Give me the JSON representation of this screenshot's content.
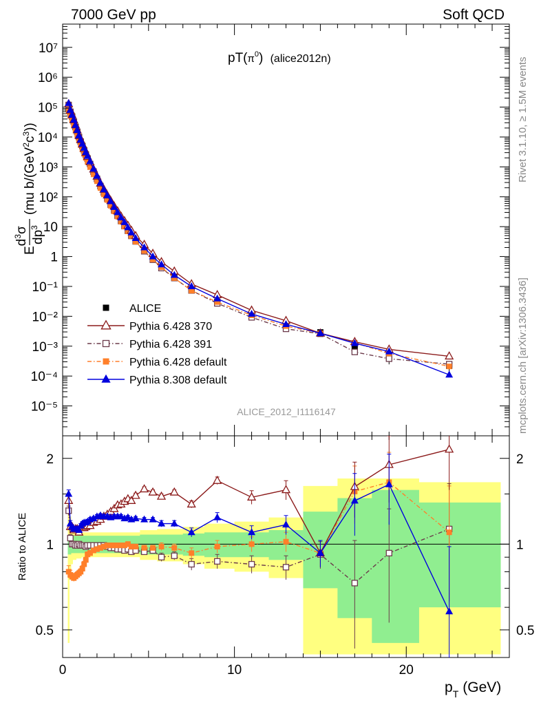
{
  "header": {
    "left": "7000 GeV pp",
    "right": "Soft QCD"
  },
  "side_labels": {
    "rivet": "Rivet 3.1.10, ≥ 1.5M events",
    "mcplots": "mcplots.cern.ch [arXiv:1306.3436]"
  },
  "plot_title": {
    "main": "pT(",
    "sym": "π",
    "sup": "0",
    "close": ")",
    "tag": "(alice2012n)"
  },
  "watermark": "ALICE_2012_I1116147",
  "axes": {
    "ylabel_main": {
      "E": "E",
      "d3": "d",
      "three": "3",
      "sigma": "σ",
      "dp": "dp",
      "p3": "3",
      "units": "(mu b/(GeV",
      "two": "2",
      "c": "c",
      "cube": "3",
      "end": "))"
    },
    "ylabel_ratio": "Ratio to ALICE",
    "xlabel": {
      "p": "p",
      "sub": "T",
      "unit": "(GeV)"
    },
    "x_ticks": [
      "0",
      "10",
      "20"
    ],
    "ratio_ticks": [
      "0.5",
      "1",
      "2"
    ]
  },
  "legend": [
    {
      "label": "ALICE",
      "color": "#000000",
      "marker": "square-filled",
      "line": "none"
    },
    {
      "label": "Pythia 6.428 370",
      "color": "#8b1a1a",
      "marker": "triangle-open",
      "line": "solid"
    },
    {
      "label": "Pythia 6.428 391",
      "color": "#6b3a4a",
      "marker": "square-open",
      "line": "dashdot"
    },
    {
      "label": "Pythia 6.428 default",
      "color": "#ff7f2a",
      "marker": "square-filled",
      "line": "dashdot"
    },
    {
      "label": "Pythia 8.308 default",
      "color": "#0000dd",
      "marker": "triangle-filled",
      "line": "solid"
    }
  ],
  "chart_data": {
    "type": "line",
    "title": "pT(π0) (alice2012n)",
    "xlabel": "pT (GeV)",
    "ylabel": "E d3σ/dp3 (mu b/(GeV2c3))",
    "xlim": [
      0,
      26
    ],
    "ylim": [
      1e-06,
      60000000
    ],
    "yscale": "log",
    "ratio_ylim": [
      0.4,
      2.4
    ],
    "ratio_yscale": "log",
    "x": [
      0.35,
      0.45,
      0.55,
      0.65,
      0.75,
      0.85,
      0.95,
      1.05,
      1.15,
      1.25,
      1.35,
      1.45,
      1.6,
      1.8,
      2.0,
      2.2,
      2.4,
      2.6,
      2.8,
      3.0,
      3.2,
      3.4,
      3.6,
      3.8,
      4.0,
      4.25,
      4.75,
      5.25,
      5.75,
      6.5,
      7.5,
      9.0,
      11.0,
      13.0,
      15.0,
      17.0,
      19.0,
      22.5
    ],
    "series": [
      {
        "name": "ALICE",
        "values": [
          90000,
          68000,
          48000,
          33000,
          22000,
          15000,
          10000,
          7000,
          5000,
          3600,
          2600,
          1900,
          1250,
          700,
          400,
          230,
          140,
          88,
          56,
          36,
          24,
          16,
          11,
          7.5,
          5.2,
          3.3,
          1.6,
          0.82,
          0.45,
          0.21,
          0.086,
          0.031,
          0.0108,
          0.0046,
          0.0029,
          0.00088,
          0.00041,
          0.00022
        ],
        "yerr_rel": [
          0.1,
          0.09,
          0.08,
          0.07,
          0.07,
          0.06,
          0.06,
          0.06,
          0.06,
          0.06,
          0.06,
          0.06,
          0.06,
          0.06,
          0.06,
          0.06,
          0.06,
          0.06,
          0.06,
          0.06,
          0.06,
          0.06,
          0.06,
          0.06,
          0.06,
          0.06,
          0.07,
          0.07,
          0.08,
          0.08,
          0.09,
          0.1,
          0.12,
          0.15,
          0.2,
          0.35,
          0.4,
          0.35
        ],
        "band_inner": [
          0.08,
          0.08,
          0.07,
          0.07,
          0.07,
          0.07,
          0.07,
          0.07,
          0.07,
          0.07,
          0.07,
          0.07,
          0.07,
          0.07,
          0.07,
          0.07,
          0.07,
          0.07,
          0.07,
          0.07,
          0.07,
          0.07,
          0.07,
          0.07,
          0.07,
          0.07,
          0.08,
          0.08,
          0.08,
          0.08,
          0.09,
          0.1,
          0.1,
          0.12,
          0.3,
          0.45,
          0.55,
          0.4
        ],
        "band_outer": [
          0.55,
          0.25,
          0.15,
          0.12,
          0.12,
          0.11,
          0.11,
          0.11,
          0.1,
          0.1,
          0.1,
          0.1,
          0.1,
          0.1,
          0.1,
          0.1,
          0.1,
          0.1,
          0.1,
          0.1,
          0.1,
          0.1,
          0.1,
          0.1,
          0.1,
          0.1,
          0.12,
          0.12,
          0.13,
          0.13,
          0.15,
          0.18,
          0.2,
          0.24,
          0.6,
          0.7,
          0.7,
          0.65
        ]
      },
      {
        "name": "Pythia 6.428 370",
        "values": [
          128000,
          78000,
          55000,
          37000,
          25000,
          17000,
          11000,
          8000,
          5700,
          4100,
          3000,
          2200,
          1450,
          830,
          480,
          280,
          175,
          112,
          73,
          48,
          33,
          22,
          15.5,
          10.8,
          7.4,
          4.9,
          2.5,
          1.25,
          0.66,
          0.32,
          0.12,
          0.052,
          0.0158,
          0.0071,
          0.0027,
          0.0014,
          0.00078,
          0.00046
        ],
        "ratio": [
          1.42,
          1.15,
          1.15,
          1.12,
          1.13,
          1.13,
          1.1,
          1.14,
          1.14,
          1.14,
          1.15,
          1.16,
          1.16,
          1.19,
          1.2,
          1.22,
          1.25,
          1.27,
          1.3,
          1.33,
          1.37,
          1.38,
          1.41,
          1.44,
          1.42,
          1.48,
          1.56,
          1.52,
          1.47,
          1.52,
          1.38,
          1.67,
          1.46,
          1.55,
          0.93,
          1.59,
          1.9,
          2.15
        ],
        "ratio_err": [
          0.05,
          0.03,
          0.02,
          0.02,
          0.02,
          0.02,
          0.02,
          0.02,
          0.02,
          0.02,
          0.02,
          0.02,
          0.02,
          0.02,
          0.02,
          0.02,
          0.02,
          0.02,
          0.02,
          0.02,
          0.02,
          0.02,
          0.02,
          0.02,
          0.03,
          0.03,
          0.03,
          0.03,
          0.03,
          0.03,
          0.04,
          0.05,
          0.08,
          0.12,
          0.1,
          0.35,
          0.5,
          0.6
        ]
      },
      {
        "name": "Pythia 6.428 391",
        "values": [
          118000,
          70000,
          48000,
          32500,
          21500,
          14800,
          10000,
          6950,
          4950,
          3550,
          2550,
          1880,
          1240,
          690,
          395,
          227,
          138,
          86,
          54,
          35,
          23,
          15.3,
          10.4,
          7.2,
          4.9,
          3.2,
          1.5,
          0.78,
          0.41,
          0.19,
          0.073,
          0.027,
          0.0092,
          0.0038,
          0.0026,
          0.00064,
          0.00038,
          0.00025
        ],
        "ratio": [
          1.31,
          1.05,
          1.0,
          1.0,
          0.99,
          0.99,
          1.0,
          0.99,
          0.99,
          0.99,
          0.98,
          0.99,
          0.99,
          0.99,
          0.99,
          0.99,
          0.99,
          0.98,
          0.97,
          0.97,
          0.96,
          0.96,
          0.95,
          0.96,
          0.94,
          0.95,
          0.94,
          0.95,
          0.9,
          0.91,
          0.85,
          0.87,
          0.85,
          0.83,
          0.92,
          0.73,
          0.93,
          1.13
        ],
        "ratio_err": [
          0.05,
          0.03,
          0.02,
          0.02,
          0.02,
          0.02,
          0.02,
          0.02,
          0.02,
          0.02,
          0.02,
          0.02,
          0.02,
          0.02,
          0.02,
          0.02,
          0.02,
          0.02,
          0.02,
          0.02,
          0.02,
          0.02,
          0.02,
          0.02,
          0.02,
          0.02,
          0.02,
          0.02,
          0.03,
          0.03,
          0.04,
          0.05,
          0.06,
          0.08,
          0.1,
          0.3,
          0.4,
          0.5
        ]
      },
      {
        "name": "Pythia 6.428 default",
        "values": [
          72000,
          51000,
          37000,
          25500,
          17000,
          11600,
          7800,
          5400,
          3850,
          2750,
          2000,
          1470,
          980,
          560,
          330,
          195,
          120,
          78,
          50,
          32.5,
          21.8,
          14.8,
          10.1,
          7.0,
          4.9,
          3.15,
          1.55,
          0.8,
          0.44,
          0.19,
          0.072,
          0.03,
          0.0108,
          0.0047,
          0.0027,
          0.0013,
          0.00057,
          0.00021
        ],
        "ratio": [
          0.8,
          0.78,
          0.77,
          0.76,
          0.77,
          0.78,
          0.79,
          0.8,
          0.82,
          0.85,
          0.88,
          0.92,
          0.93,
          0.95,
          0.96,
          0.97,
          0.98,
          0.99,
          0.99,
          0.99,
          0.99,
          0.99,
          0.99,
          1.0,
          0.98,
          0.98,
          0.97,
          0.97,
          0.98,
          0.97,
          0.93,
          0.98,
          1.0,
          1.02,
          0.93,
          1.53,
          1.65,
          1.1
        ],
        "ratio_err": [
          0.04,
          0.03,
          0.02,
          0.02,
          0.02,
          0.02,
          0.02,
          0.02,
          0.02,
          0.02,
          0.02,
          0.02,
          0.02,
          0.02,
          0.02,
          0.02,
          0.02,
          0.02,
          0.02,
          0.02,
          0.02,
          0.02,
          0.02,
          0.02,
          0.02,
          0.02,
          0.02,
          0.02,
          0.03,
          0.03,
          0.04,
          0.05,
          0.06,
          0.08,
          0.1,
          0.35,
          0.45,
          0.5
        ]
      },
      {
        "name": "Pythia 8.308 default",
        "values": [
          135000,
          80000,
          55000,
          37500,
          25000,
          17000,
          11200,
          8100,
          5900,
          4300,
          3100,
          2300,
          1530,
          860,
          500,
          290,
          175,
          110,
          70,
          45,
          30,
          20,
          14,
          9.4,
          6.3,
          4.1,
          2.0,
          1.0,
          0.54,
          0.24,
          0.1,
          0.039,
          0.012,
          0.0054,
          0.0027,
          0.00125,
          0.00066,
          0.00011
        ],
        "ratio": [
          1.5,
          1.18,
          1.15,
          1.13,
          1.13,
          1.13,
          1.12,
          1.16,
          1.18,
          1.19,
          1.19,
          1.2,
          1.22,
          1.23,
          1.25,
          1.26,
          1.25,
          1.25,
          1.24,
          1.25,
          1.25,
          1.25,
          1.23,
          1.24,
          1.22,
          1.23,
          1.22,
          1.22,
          1.18,
          1.18,
          1.1,
          1.24,
          1.1,
          1.17,
          0.93,
          1.42,
          1.62,
          0.58
        ],
        "ratio_err": [
          0.05,
          0.03,
          0.02,
          0.02,
          0.02,
          0.02,
          0.02,
          0.02,
          0.02,
          0.02,
          0.02,
          0.02,
          0.02,
          0.02,
          0.02,
          0.02,
          0.02,
          0.02,
          0.02,
          0.02,
          0.02,
          0.02,
          0.02,
          0.02,
          0.02,
          0.02,
          0.02,
          0.02,
          0.03,
          0.03,
          0.04,
          0.05,
          0.06,
          0.09,
          0.1,
          0.35,
          0.45,
          0.4
        ]
      }
    ]
  }
}
